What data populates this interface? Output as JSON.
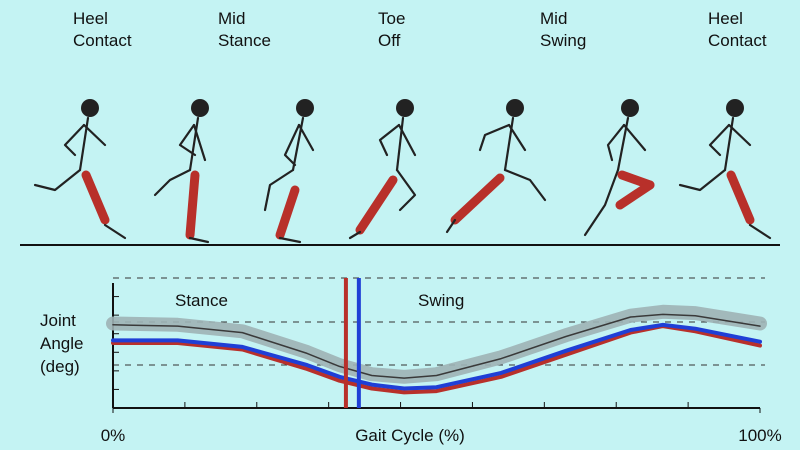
{
  "phases": [
    [
      "Heel",
      "Contact"
    ],
    [
      "Mid",
      "Stance"
    ],
    [
      "Toe",
      "Off"
    ],
    [
      "Mid",
      "Swing"
    ],
    [
      "Heel",
      "Contact"
    ]
  ],
  "chart_data": {
    "type": "line",
    "y_label": [
      "Joint",
      "Angle",
      "(deg)"
    ],
    "x_label": "Gait Cycle (%)",
    "annotations": [
      "Stance",
      "Swing"
    ],
    "x": [
      0,
      10,
      20,
      30,
      35,
      40,
      45,
      50,
      60,
      70,
      80,
      85,
      90,
      100
    ],
    "xlim": [
      0,
      100
    ],
    "xticks": [
      {
        "value": 0,
        "label": "0%"
      },
      {
        "value": 100,
        "label": "100%"
      }
    ],
    "ylim": [
      0,
      100
    ],
    "series": [
      {
        "color": "#9fb3b5",
        "band": true,
        "values": [
          65,
          64,
          59,
          43,
          33,
          26,
          24,
          26,
          39,
          56,
          71,
          74,
          73,
          65
        ]
      },
      {
        "color": "#3a3a3a",
        "values": [
          64,
          63,
          58,
          42,
          32,
          25,
          23,
          25,
          38,
          55,
          70,
          72,
          71,
          63
        ]
      },
      {
        "color": "#b8302a",
        "values": [
          50,
          50,
          45,
          30,
          21,
          15,
          12,
          13,
          24,
          41,
          58,
          63,
          59,
          48
        ]
      },
      {
        "color": "#1f3fd6",
        "values": [
          52,
          52,
          47,
          33,
          24,
          18,
          15,
          16,
          27,
          44,
          60,
          64,
          61,
          51
        ]
      }
    ],
    "vlines": [
      {
        "x": 36,
        "color": "#b8302a"
      },
      {
        "x": 38,
        "color": "#1f3fd6"
      }
    ]
  }
}
